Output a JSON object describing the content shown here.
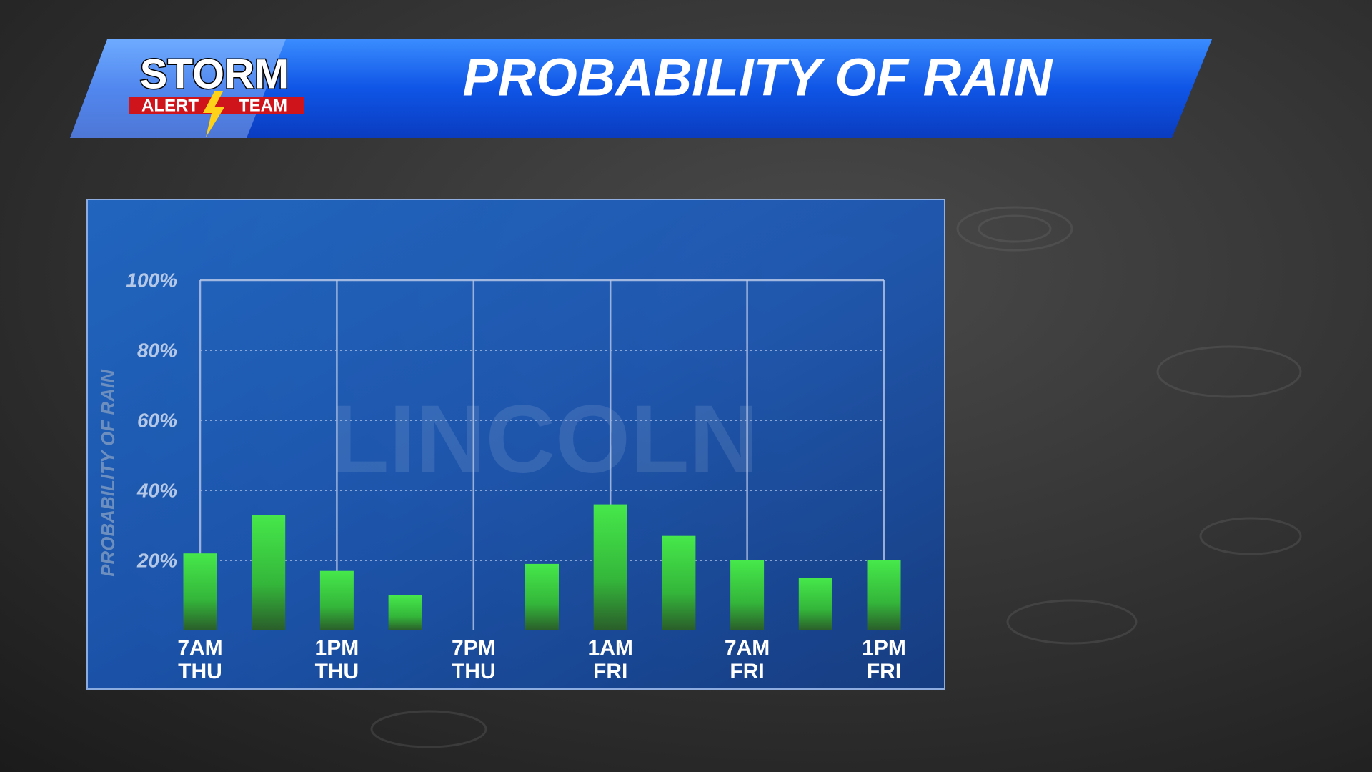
{
  "header": {
    "logo": [
      "STORM",
      "ALERT",
      "TEAM"
    ],
    "title": "PROBABILITY OF RAIN"
  },
  "chart_data": {
    "type": "bar",
    "watermark": "LINCOLN",
    "y_label": "PROBABILITY OF RAIN",
    "categories": [
      [
        "7AM",
        "THU"
      ],
      null,
      [
        "1PM",
        "THU"
      ],
      null,
      [
        "7PM",
        "THU"
      ],
      null,
      [
        "1AM",
        "FRI"
      ],
      null,
      [
        "7AM",
        "FRI"
      ],
      null,
      [
        "1PM",
        "FRI"
      ]
    ],
    "values": [
      22,
      33,
      17,
      10,
      0,
      19,
      36,
      27,
      20,
      15,
      20
    ],
    "color": "#3fdc45",
    "ylim": [
      0,
      100
    ],
    "yticks": [
      {
        "value": 20,
        "label": "20%"
      },
      {
        "value": 40,
        "label": "40%"
      },
      {
        "value": 60,
        "label": "60%"
      },
      {
        "value": 80,
        "label": "80%"
      },
      {
        "value": 100,
        "label": "100%"
      }
    ],
    "grid": true
  }
}
